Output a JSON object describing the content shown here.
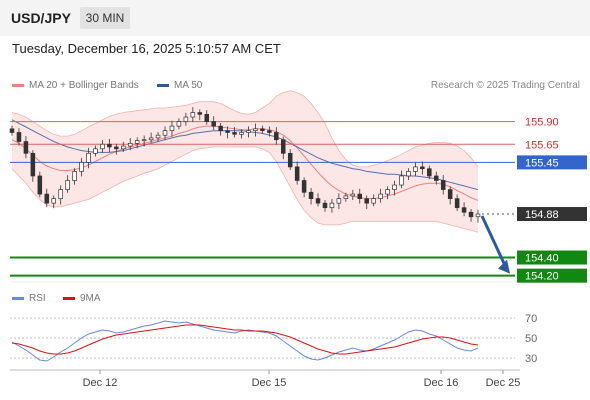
{
  "header": {
    "symbol": "USD/JPY",
    "timeframe": "30 MIN",
    "datetime": "Tuesday, December 16, 2025 5:10:57 AM CET"
  },
  "legend": {
    "bollinger": {
      "label": "MA 20 + Bollinger Bands",
      "color": "#f08080"
    },
    "ma50": {
      "label": "MA 50",
      "color": "#2c5a9a"
    },
    "rsi": {
      "label": "RSI",
      "color": "#6688dd"
    },
    "rsi_ma": {
      "label": "9MA",
      "color": "#e01010"
    }
  },
  "credit": "Research © 2025 Trading Central",
  "chart_data": [
    {
      "type": "candlestick",
      "ylim": [
        154.13,
        156.05
      ],
      "x_ticks": [
        "Dec 12",
        "Dec 15",
        "Dec 16",
        "Dec 25"
      ],
      "levels": [
        {
          "value": 155.9,
          "label": "155.90",
          "kind": "resistance",
          "color": "#e06060"
        },
        {
          "value": 155.65,
          "label": "155.65",
          "kind": "resistance",
          "color": "#e06060"
        },
        {
          "value": 155.45,
          "label": "155.45",
          "kind": "current-ma",
          "color": "#3366cc"
        },
        {
          "value": 154.88,
          "label": "154.88",
          "kind": "last-price",
          "color": "#333333"
        },
        {
          "value": 154.4,
          "label": "154.40",
          "kind": "support",
          "color": "#118811"
        },
        {
          "value": 154.2,
          "label": "154.20",
          "kind": "support",
          "color": "#118811"
        }
      ],
      "close": [
        155.78,
        155.68,
        155.55,
        155.3,
        155.1,
        155.0,
        155.05,
        155.15,
        155.25,
        155.35,
        155.45,
        155.55,
        155.6,
        155.65,
        155.62,
        155.6,
        155.63,
        155.66,
        155.69,
        155.7,
        155.72,
        155.75,
        155.8,
        155.85,
        155.9,
        155.95,
        156.0,
        155.98,
        155.9,
        155.85,
        155.8,
        155.78,
        155.76,
        155.78,
        155.8,
        155.82,
        155.8,
        155.78,
        155.7,
        155.55,
        155.4,
        155.25,
        155.12,
        155.05,
        155.0,
        154.95,
        155.0,
        155.05,
        155.08,
        155.1,
        155.05,
        155.0,
        155.05,
        155.1,
        155.15,
        155.2,
        155.3,
        155.35,
        155.4,
        155.38,
        155.3,
        155.25,
        155.15,
        155.05,
        154.95,
        154.9,
        154.85,
        154.88
      ],
      "ma20": [
        155.7,
        155.66,
        155.6,
        155.53,
        155.46,
        155.41,
        155.38,
        155.36,
        155.36,
        155.37,
        155.39,
        155.42,
        155.46,
        155.5,
        155.54,
        155.57,
        155.6,
        155.62,
        155.64,
        155.66,
        155.68,
        155.7,
        155.72,
        155.74,
        155.77,
        155.79,
        155.82,
        155.84,
        155.85,
        155.85,
        155.84,
        155.83,
        155.82,
        155.81,
        155.81,
        155.82,
        155.82,
        155.81,
        155.79,
        155.75,
        155.69,
        155.61,
        155.52,
        155.43,
        155.34,
        155.26,
        155.19,
        155.14,
        155.1,
        155.08,
        155.06,
        155.05,
        155.05,
        155.06,
        155.08,
        155.1,
        155.13,
        155.16,
        155.19,
        155.21,
        155.22,
        155.22,
        155.21,
        155.18,
        155.14,
        155.1,
        155.06,
        155.03
      ],
      "bb_upper": [
        156.0,
        155.98,
        155.95,
        155.9,
        155.85,
        155.8,
        155.76,
        155.74,
        155.74,
        155.76,
        155.8,
        155.84,
        155.88,
        155.92,
        155.96,
        155.98,
        156.0,
        156.01,
        156.02,
        156.03,
        156.04,
        156.05,
        156.05,
        156.06,
        156.07,
        156.08,
        156.1,
        156.12,
        156.12,
        156.12,
        156.1,
        156.06,
        156.02,
        155.99,
        155.98,
        156.0,
        156.05,
        156.1,
        156.18,
        156.22,
        156.24,
        156.22,
        156.18,
        156.1,
        156.0,
        155.88,
        155.72,
        155.58,
        155.48,
        155.42,
        155.4,
        155.4,
        155.42,
        155.44,
        155.47,
        155.5,
        155.54,
        155.58,
        155.62,
        155.64,
        155.66,
        155.67,
        155.67,
        155.66,
        155.63,
        155.58,
        155.5,
        155.4
      ],
      "bb_lower": [
        155.38,
        155.3,
        155.22,
        155.12,
        155.04,
        154.98,
        154.96,
        154.96,
        154.98,
        155.0,
        155.02,
        155.04,
        155.08,
        155.12,
        155.16,
        155.2,
        155.24,
        155.27,
        155.3,
        155.33,
        155.35,
        155.38,
        155.42,
        155.46,
        155.5,
        155.54,
        155.58,
        155.6,
        155.61,
        155.62,
        155.62,
        155.62,
        155.62,
        155.62,
        155.62,
        155.62,
        155.6,
        155.56,
        155.46,
        155.32,
        155.18,
        155.04,
        154.92,
        154.84,
        154.78,
        154.76,
        154.76,
        154.76,
        154.78,
        154.8,
        154.8,
        154.8,
        154.8,
        154.8,
        154.8,
        154.8,
        154.8,
        154.8,
        154.8,
        154.8,
        154.8,
        154.8,
        154.78,
        154.76,
        154.74,
        154.72,
        154.7,
        154.68
      ],
      "ma50": [
        155.92,
        155.88,
        155.84,
        155.8,
        155.76,
        155.72,
        155.68,
        155.65,
        155.62,
        155.6,
        155.58,
        155.57,
        155.56,
        155.56,
        155.56,
        155.57,
        155.58,
        155.6,
        155.62,
        155.64,
        155.66,
        155.68,
        155.7,
        155.72,
        155.74,
        155.75,
        155.77,
        155.78,
        155.79,
        155.8,
        155.8,
        155.8,
        155.8,
        155.8,
        155.79,
        155.78,
        155.77,
        155.75,
        155.73,
        155.7,
        155.66,
        155.62,
        155.58,
        155.54,
        155.5,
        155.47,
        155.44,
        155.42,
        155.4,
        155.38,
        155.37,
        155.35,
        155.34,
        155.33,
        155.32,
        155.32,
        155.31,
        155.3,
        155.3,
        155.29,
        155.28,
        155.27,
        155.25,
        155.23,
        155.21,
        155.19,
        155.17,
        155.15
      ]
    },
    {
      "type": "line",
      "ylim": [
        20,
        78
      ],
      "y_ticks": [
        70,
        50,
        30
      ],
      "series": [
        {
          "name": "RSI",
          "values": [
            46,
            42,
            38,
            33,
            28,
            27,
            31,
            36,
            40,
            45,
            50,
            54,
            56,
            58,
            57,
            55,
            56,
            58,
            60,
            62,
            63,
            65,
            67,
            66,
            65,
            66,
            64,
            62,
            60,
            58,
            57,
            56,
            55,
            57,
            58,
            57,
            56,
            55,
            52,
            47,
            42,
            37,
            32,
            29,
            28,
            30,
            33,
            36,
            38,
            40,
            38,
            37,
            39,
            42,
            45,
            48,
            52,
            56,
            58,
            57,
            54,
            52,
            48,
            44,
            40,
            38,
            37,
            40
          ]
        },
        {
          "name": "9MA",
          "values": [
            45,
            44,
            42,
            40,
            37,
            35,
            34,
            34,
            35,
            37,
            40,
            43,
            46,
            49,
            51,
            53,
            54,
            55,
            56,
            57,
            58,
            59,
            60,
            61,
            62,
            63,
            63,
            63,
            62,
            61,
            60,
            59,
            58,
            58,
            57,
            57,
            57,
            56,
            55,
            53,
            51,
            48,
            45,
            42,
            39,
            37,
            35,
            34,
            34,
            35,
            36,
            37,
            38,
            39,
            40,
            41,
            43,
            45,
            47,
            49,
            50,
            51,
            51,
            50,
            48,
            46,
            44,
            43
          ]
        }
      ]
    }
  ]
}
